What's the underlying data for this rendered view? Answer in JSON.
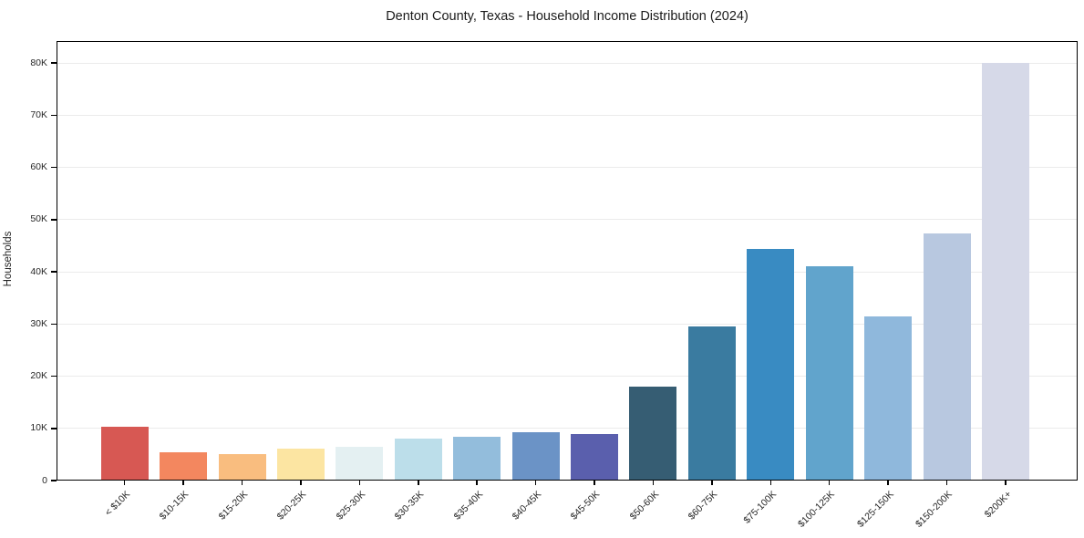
{
  "chart_data": {
    "type": "bar",
    "title": "Denton County, Texas - Household Income Distribution (2024)",
    "xlabel": "",
    "ylabel": "Households",
    "categories": [
      "< $10K",
      "$10-15K",
      "$15-20K",
      "$20-25K",
      "$25-30K",
      "$30-35K",
      "$35-40K",
      "$40-45K",
      "$45-50K",
      "$50-60K",
      "$60-75K",
      "$75-100K",
      "$100-125K",
      "$125-150K",
      "$150-200K",
      "$200K+"
    ],
    "values": [
      10350,
      5500,
      5000,
      6200,
      6500,
      8100,
      8400,
      9300,
      8900,
      18000,
      29600,
      44400,
      41000,
      31500,
      47400,
      80000
    ],
    "bar_colors": [
      "#d75853",
      "#f3875f",
      "#f9bd7f",
      "#fce5a2",
      "#e4f0f2",
      "#bcdeea",
      "#93bddc",
      "#6b93c6",
      "#5a5fad",
      "#365d73",
      "#3a7ba0",
      "#398bc2",
      "#61a4cc",
      "#8fb8dc",
      "#b8c8e0",
      "#d6d9e8"
    ],
    "ylim": [
      0,
      84200
    ],
    "ytick_interval": 10000,
    "ytick_labels": [
      "0",
      "10K",
      "20K",
      "30K",
      "40K",
      "50K",
      "60K",
      "70K",
      "80K"
    ],
    "grid": true,
    "grid_color": "#ebebeb",
    "legend": "none",
    "background": "#ffffff",
    "spine_color": "#000000"
  }
}
